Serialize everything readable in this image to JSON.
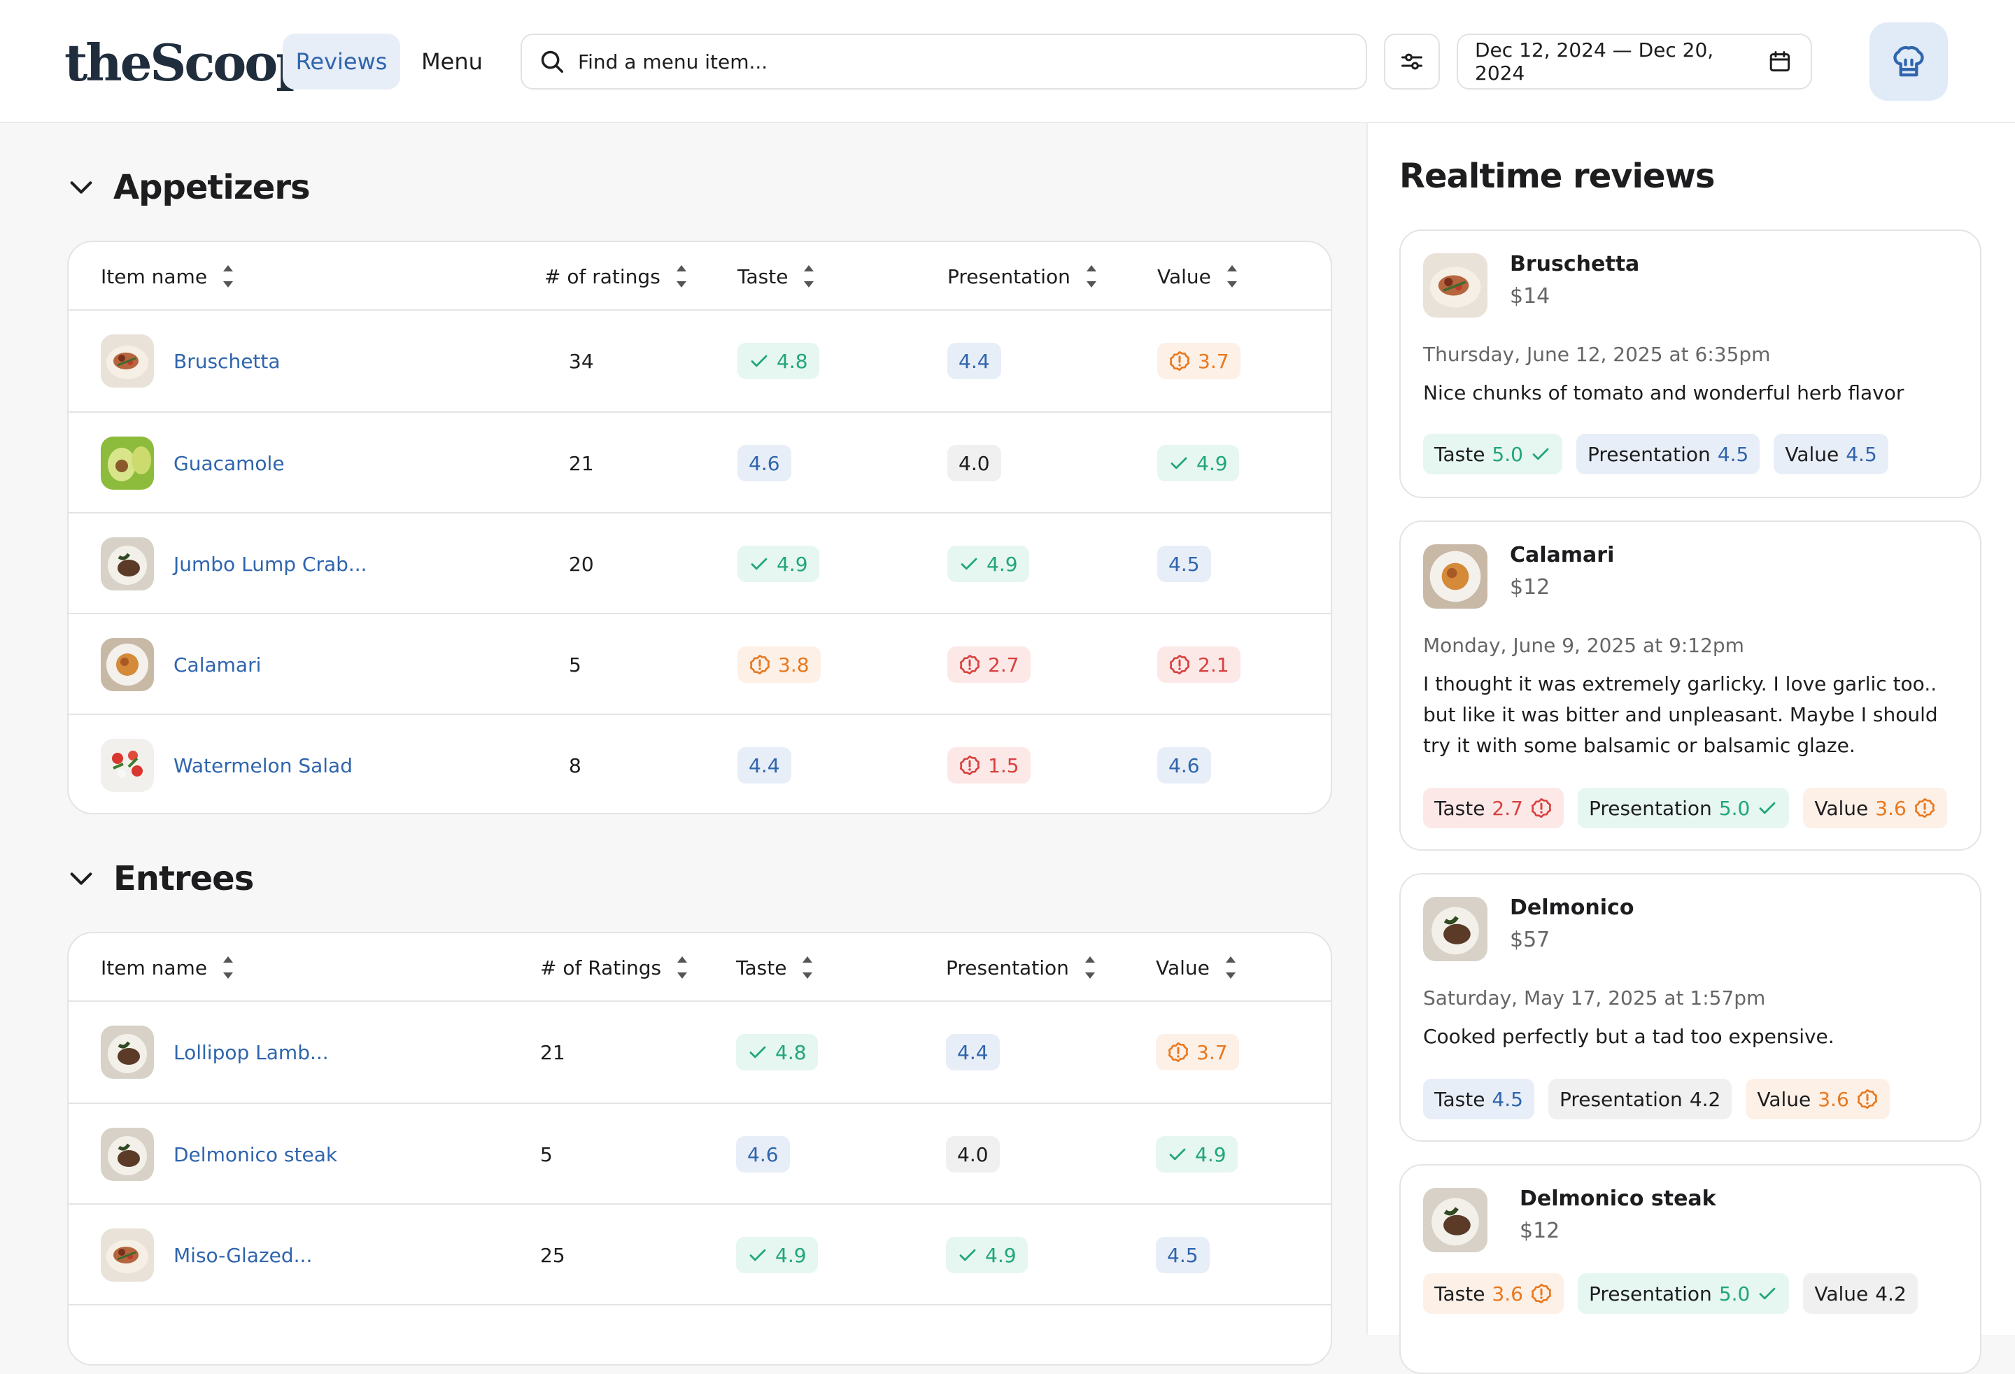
{
  "header": {
    "logo": "theScoop",
    "nav": {
      "reviews": "Reviews",
      "menu": "Menu"
    },
    "search_placeholder": "Find a menu item...",
    "date_range": "Dec 12, 2024 — Dec 20, 2024"
  },
  "colors": {
    "accent": "#2f65ad",
    "good": "#21a67a",
    "warn": "#e8781e",
    "bad": "#d8413d"
  },
  "appetizers": {
    "title": "Appetizers",
    "headers": {
      "name": "Item name",
      "ratings": "# of ratings",
      "taste": "Taste",
      "presentation": "Presentation",
      "value": "Value"
    },
    "rows": [
      {
        "name": "Bruschetta",
        "ratings": "34",
        "taste": "4.8",
        "presentation": "4.4",
        "value": "3.7"
      },
      {
        "name": "Guacamole",
        "ratings": "21",
        "taste": "4.6",
        "presentation": "4.0",
        "value": "4.9"
      },
      {
        "name": "Jumbo Lump Crab...",
        "ratings": "20",
        "taste": "4.9",
        "presentation": "4.9",
        "value": "4.5"
      },
      {
        "name": "Calamari",
        "ratings": "5",
        "taste": "3.8",
        "presentation": "2.7",
        "value": "2.1"
      },
      {
        "name": "Watermelon Salad",
        "ratings": "8",
        "taste": "4.4",
        "presentation": "1.5",
        "value": "4.6"
      }
    ]
  },
  "entrees": {
    "title": "Entrees",
    "headers": {
      "name": "Item name",
      "ratings": "# of Ratings",
      "taste": "Taste",
      "presentation": "Presentation",
      "value": "Value"
    },
    "rows": [
      {
        "name": "Lollipop Lamb...",
        "ratings": "21",
        "taste": "4.8",
        "presentation": "4.4",
        "value": "3.7"
      },
      {
        "name": "Delmonico steak",
        "ratings": "5",
        "taste": "4.6",
        "presentation": "4.0",
        "value": "4.9"
      },
      {
        "name": "Miso-Glazed...",
        "ratings": "25",
        "taste": "4.9",
        "presentation": "4.9",
        "value": "4.5"
      }
    ]
  },
  "realtime": {
    "title": "Realtime reviews",
    "labels": {
      "taste": "Taste",
      "presentation": "Presentation",
      "value": "Value"
    },
    "cards": [
      {
        "name": "Bruschetta",
        "price": "$14",
        "date": "Thursday, June 12, 2025 at 6:35pm",
        "text": "Nice chunks of tomato and wonderful herb flavor",
        "taste": "5.0",
        "presentation": "4.5",
        "value": "4.5"
      },
      {
        "name": "Calamari",
        "price": "$12",
        "date": "Monday, June 9, 2025 at 9:12pm",
        "text": "I thought it was extremely garlicky. I love garlic too.. but like it was bitter and unpleasant. Maybe I should try it with some balsamic or balsamic glaze.",
        "taste": "2.7",
        "presentation": "5.0",
        "value": "3.6"
      },
      {
        "name": "Delmonico",
        "price": "$57",
        "date": "Saturday, May 17, 2025 at 1:57pm",
        "text": "Cooked perfectly but a tad too expensive.",
        "taste": "4.5",
        "presentation": "4.2",
        "value": "3.6"
      },
      {
        "name": "Delmonico steak",
        "price": "$12",
        "taste": "3.6",
        "presentation": "5.0",
        "value": "4.2"
      }
    ]
  }
}
